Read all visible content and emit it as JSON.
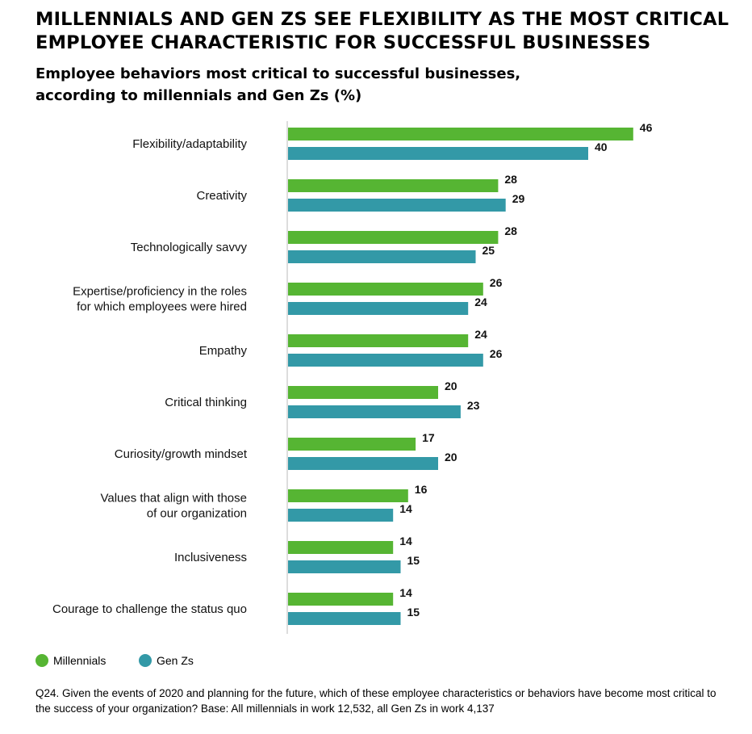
{
  "title": "MILLENNIALS AND GEN ZS SEE FLEXIBILITY AS THE MOST CRITICAL EMPLOYEE CHARACTERISTIC FOR SUCCESSFUL BUSINESSES",
  "subtitle": "Employee behaviors most critical to successful businesses, according to millennials and Gen Zs (%)",
  "footnote": "Q24. Given the events of 2020 and planning for the future, which of these employee characteristics or behaviors have become most critical to the success of your organization? Base: All millennials in work 12,532, all Gen Zs in work 4,137",
  "legend": {
    "millennials": "Millennials",
    "genzs": "Gen Zs"
  },
  "colors": {
    "millennials": "#56b533",
    "genzs": "#3399a7",
    "axis": "#bbbbbb"
  },
  "chart_data": {
    "type": "bar",
    "orientation": "horizontal",
    "categories": [
      [
        "Flexibility/adaptability"
      ],
      [
        "Creativity"
      ],
      [
        "Technologically savvy"
      ],
      [
        "Expertise/proficiency in the roles",
        "for which employees were hired"
      ],
      [
        "Empathy"
      ],
      [
        "Critical thinking"
      ],
      [
        "Curiosity/growth mindset"
      ],
      [
        "Values that align with those",
        "of our organization"
      ],
      [
        "Inclusiveness"
      ],
      [
        "Courage to challenge the status quo"
      ]
    ],
    "series": [
      {
        "name": "Millennials",
        "values": [
          46,
          28,
          28,
          26,
          24,
          20,
          17,
          16,
          14,
          14
        ]
      },
      {
        "name": "Gen Zs",
        "values": [
          40,
          29,
          25,
          24,
          26,
          23,
          20,
          14,
          15,
          15
        ]
      }
    ],
    "xlim": [
      0,
      46
    ],
    "grid": false,
    "legend_position": "bottom-left"
  }
}
